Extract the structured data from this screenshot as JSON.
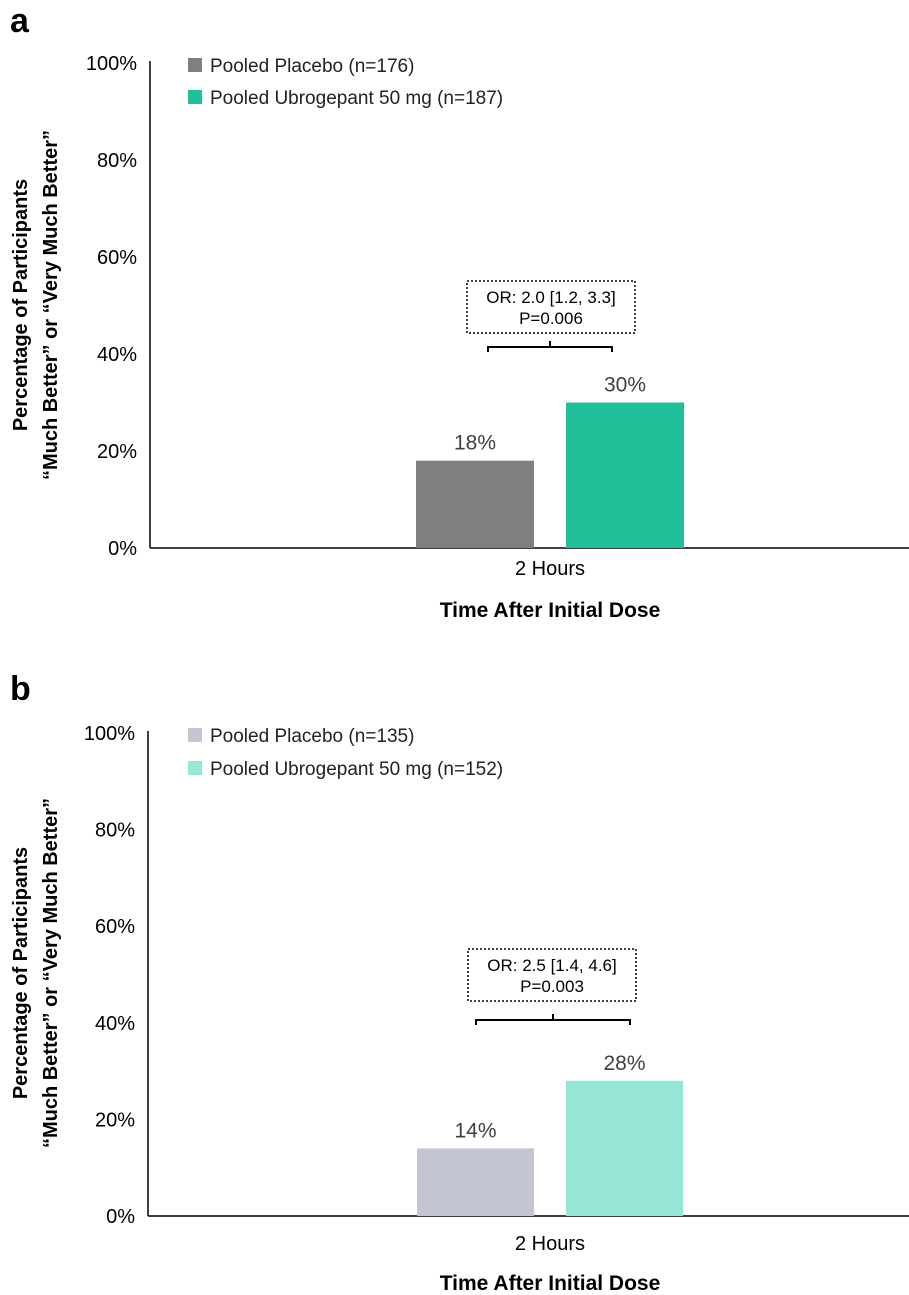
{
  "chart_data": [
    {
      "panel": "a",
      "type": "bar",
      "ylabel_lines": [
        "Percentage of Participants",
        "“Much Better” or “Very Much Better”"
      ],
      "xlabel": "Time After Initial Dose",
      "categories": [
        "2 Hours"
      ],
      "ylim": [
        0,
        100
      ],
      "yticks": [
        0,
        20,
        40,
        60,
        80,
        100
      ],
      "ytick_labels": [
        "0%",
        "20%",
        "40%",
        "60%",
        "80%",
        "100%"
      ],
      "legend_position": "top-left",
      "series": [
        {
          "name": "Pooled Placebo (n=176)",
          "values": [
            18
          ],
          "labels": [
            "18%"
          ],
          "color": "#7f7f7f"
        },
        {
          "name": "Pooled Ubrogepant 50 mg (n=187)",
          "values": [
            30
          ],
          "labels": [
            "30%"
          ],
          "color": "#20c09a"
        }
      ],
      "annotation": {
        "lines": [
          "OR: 2.0 [1.2, 3.3]",
          "P=0.006"
        ],
        "bracket_level": 42
      }
    },
    {
      "panel": "b",
      "type": "bar",
      "ylabel_lines": [
        "Percentage of Participants",
        "“Much Better” or “Very Much Better”"
      ],
      "xlabel": "Time After Initial Dose",
      "categories": [
        "2 Hours"
      ],
      "ylim": [
        0,
        100
      ],
      "yticks": [
        0,
        20,
        40,
        60,
        80,
        100
      ],
      "ytick_labels": [
        "0%",
        "20%",
        "40%",
        "60%",
        "80%",
        "100%"
      ],
      "legend_position": "top-left",
      "series": [
        {
          "name": "Pooled Placebo (n=135)",
          "values": [
            14
          ],
          "labels": [
            "14%"
          ],
          "color": "#c3c6d2"
        },
        {
          "name": "Pooled Ubrogepant 50 mg (n=152)",
          "values": [
            28
          ],
          "labels": [
            "28%"
          ],
          "color": "#96e6d5"
        }
      ],
      "annotation": {
        "lines": [
          "OR: 2.5 [1.4, 4.6]",
          "P=0.003"
        ],
        "bracket_level": 41
      }
    }
  ]
}
